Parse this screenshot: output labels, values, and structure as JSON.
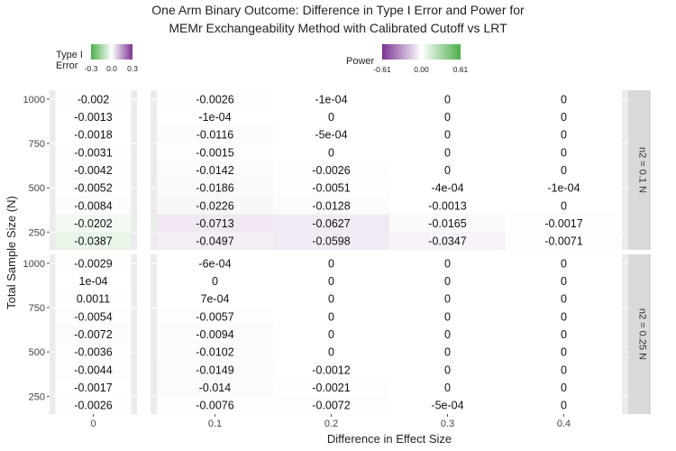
{
  "chart_data": {
    "type": "heatmap",
    "title_lines": [
      "One Arm Binary Outcome: Difference in Type I Error and Power for",
      "MEMr Exchangeability Method with Calibrated Cutoff vs LRT"
    ],
    "xlabel": "Difference in Effect Size",
    "ylabel": "Total Sample Size (N)",
    "y_ticks": [
      "1000",
      "750",
      "500",
      "250"
    ],
    "y_tick_values": [
      1000,
      750,
      500,
      250
    ],
    "y_values": [
      1000,
      900,
      800,
      700,
      600,
      500,
      400,
      300,
      200
    ],
    "y_range": [
      150,
      1050
    ],
    "left_x_tick": "0",
    "right_x_ticks": [
      "0.1",
      "0.2",
      "0.3",
      "0.4"
    ],
    "legends": {
      "type1": {
        "title_lines": [
          "Type I",
          "Error"
        ],
        "tick_labels": [
          "-0.3",
          "0.0",
          "0.3"
        ],
        "tick_values": [
          -0.3,
          0.0,
          0.3
        ],
        "range": [
          -0.3,
          0.3
        ],
        "low_color": "#4daf4a",
        "mid_color": "#ffffff",
        "high_color": "#7b3294"
      },
      "power": {
        "title": "Power",
        "tick_labels": [
          "-0.61",
          "0.00",
          "0.61"
        ],
        "tick_values": [
          -0.61,
          0.0,
          0.61
        ],
        "range": [
          -0.61,
          0.61
        ],
        "low_color": "#7b3294",
        "mid_color": "#ffffff",
        "high_color": "#4daf4a"
      }
    },
    "panels": [
      {
        "strip": "n2 = 0.1 N",
        "type1": {
          "x": 0,
          "values": [
            -0.002,
            -0.0013,
            -0.0018,
            -0.0031,
            -0.0042,
            -0.0052,
            -0.0084,
            -0.0202,
            -0.0387
          ],
          "labels": [
            "-0.002",
            "-0.0013",
            "-0.0018",
            "-0.0031",
            "-0.0042",
            "-0.0052",
            "-0.0084",
            "-0.0202",
            "-0.0387"
          ]
        },
        "power": [
          {
            "x": 0.1,
            "values": [
              -0.0026,
              -0.0001,
              -0.0116,
              -0.0015,
              -0.0142,
              -0.0186,
              -0.0226,
              -0.0713,
              -0.0497
            ],
            "labels": [
              "-0.0026",
              "-1e-04",
              "-0.0116",
              "-0.0015",
              "-0.0142",
              "-0.0186",
              "-0.0226",
              "-0.0713",
              "-0.0497"
            ]
          },
          {
            "x": 0.2,
            "values": [
              -0.0001,
              0,
              -0.0005,
              0,
              -0.0026,
              -0.0051,
              -0.0128,
              -0.0627,
              -0.0598
            ],
            "labels": [
              "-1e-04",
              "0",
              "-5e-04",
              "0",
              "-0.0026",
              "-0.0051",
              "-0.0128",
              "-0.0627",
              "-0.0598"
            ]
          },
          {
            "x": 0.3,
            "values": [
              0,
              0,
              0,
              0,
              0,
              -0.0004,
              -0.0013,
              -0.0165,
              -0.0347
            ],
            "labels": [
              "0",
              "0",
              "0",
              "0",
              "0",
              "-4e-04",
              "-0.0013",
              "-0.0165",
              "-0.0347"
            ]
          },
          {
            "x": 0.4,
            "values": [
              0,
              0,
              0,
              0,
              0,
              -0.0001,
              0,
              -0.0017,
              -0.0071
            ],
            "labels": [
              "0",
              "0",
              "0",
              "0",
              "0",
              "-1e-04",
              "0",
              "-0.0017",
              "-0.0071"
            ]
          }
        ]
      },
      {
        "strip": "n2 = 0.25 N",
        "type1": {
          "x": 0,
          "values": [
            -0.0029,
            0.0001,
            0.0011,
            -0.0054,
            -0.0072,
            -0.0036,
            -0.0044,
            -0.0017,
            -0.0026
          ],
          "labels": [
            "-0.0029",
            "1e-04",
            "0.0011",
            "-0.0054",
            "-0.0072",
            "-0.0036",
            "-0.0044",
            "-0.0017",
            "-0.0026"
          ]
        },
        "power": [
          {
            "x": 0.1,
            "values": [
              -0.0006,
              0,
              0.0007,
              -0.0057,
              -0.0094,
              -0.0102,
              -0.0149,
              -0.014,
              -0.0076
            ],
            "labels": [
              "-6e-04",
              "0",
              "7e-04",
              "-0.0057",
              "-0.0094",
              "-0.0102",
              "-0.0149",
              "-0.014",
              "-0.0076"
            ]
          },
          {
            "x": 0.2,
            "values": [
              0,
              0,
              0,
              0,
              0,
              0,
              -0.0012,
              -0.0021,
              -0.0072
            ],
            "labels": [
              "0",
              "0",
              "0",
              "0",
              "0",
              "0",
              "-0.0012",
              "-0.0021",
              "-0.0072"
            ]
          },
          {
            "x": 0.3,
            "values": [
              0,
              0,
              0,
              0,
              0,
              0,
              0,
              0,
              -0.0005
            ],
            "labels": [
              "0",
              "0",
              "0",
              "0",
              "0",
              "0",
              "0",
              "0",
              "-5e-04"
            ]
          },
          {
            "x": 0.4,
            "values": [
              0,
              0,
              0,
              0,
              0,
              0,
              0,
              0,
              0
            ],
            "labels": [
              "0",
              "0",
              "0",
              "0",
              "0",
              "0",
              "0",
              "0",
              "0"
            ]
          }
        ]
      }
    ]
  }
}
